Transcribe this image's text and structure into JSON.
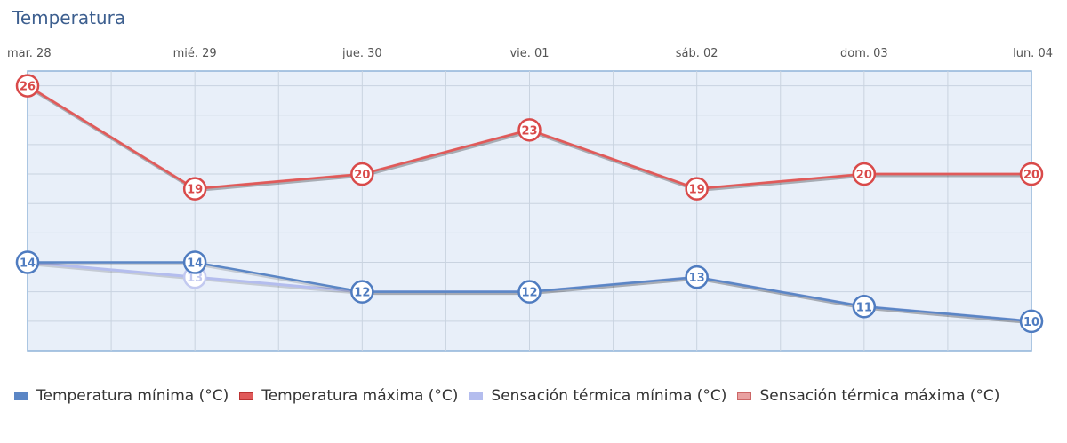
{
  "page": {
    "title": "Temperatura"
  },
  "chart_data": {
    "type": "line",
    "title": "Temperatura",
    "xlabel": "",
    "ylabel": "",
    "categories": [
      "mar. 28",
      "mié. 29",
      "jue. 30",
      "vie. 01",
      "sáb. 02",
      "dom. 03",
      "lun. 04"
    ],
    "ylim": [
      8,
      27
    ],
    "grid": true,
    "legend_position": "bottom-left",
    "series": [
      {
        "name": "Temperatura mínima (°C)",
        "values": [
          14,
          14,
          12,
          12,
          13,
          11,
          10
        ],
        "color": "#5b86c5",
        "labels": true
      },
      {
        "name": "Temperatura máxima (°C)",
        "values": [
          26,
          19,
          20,
          23,
          19,
          20,
          20
        ],
        "color": "#e05a5a",
        "labels": true
      },
      {
        "name": "Sensación térmica mínima (°C)",
        "values": [
          14,
          13,
          12,
          12,
          13,
          11,
          10
        ],
        "color": "#b4bdee",
        "labels": true
      },
      {
        "name": "Sensación térmica máxima (°C)",
        "values": [
          26,
          19,
          20,
          23,
          19,
          20,
          20
        ],
        "color": "#e8a0a0",
        "labels": false
      }
    ]
  }
}
